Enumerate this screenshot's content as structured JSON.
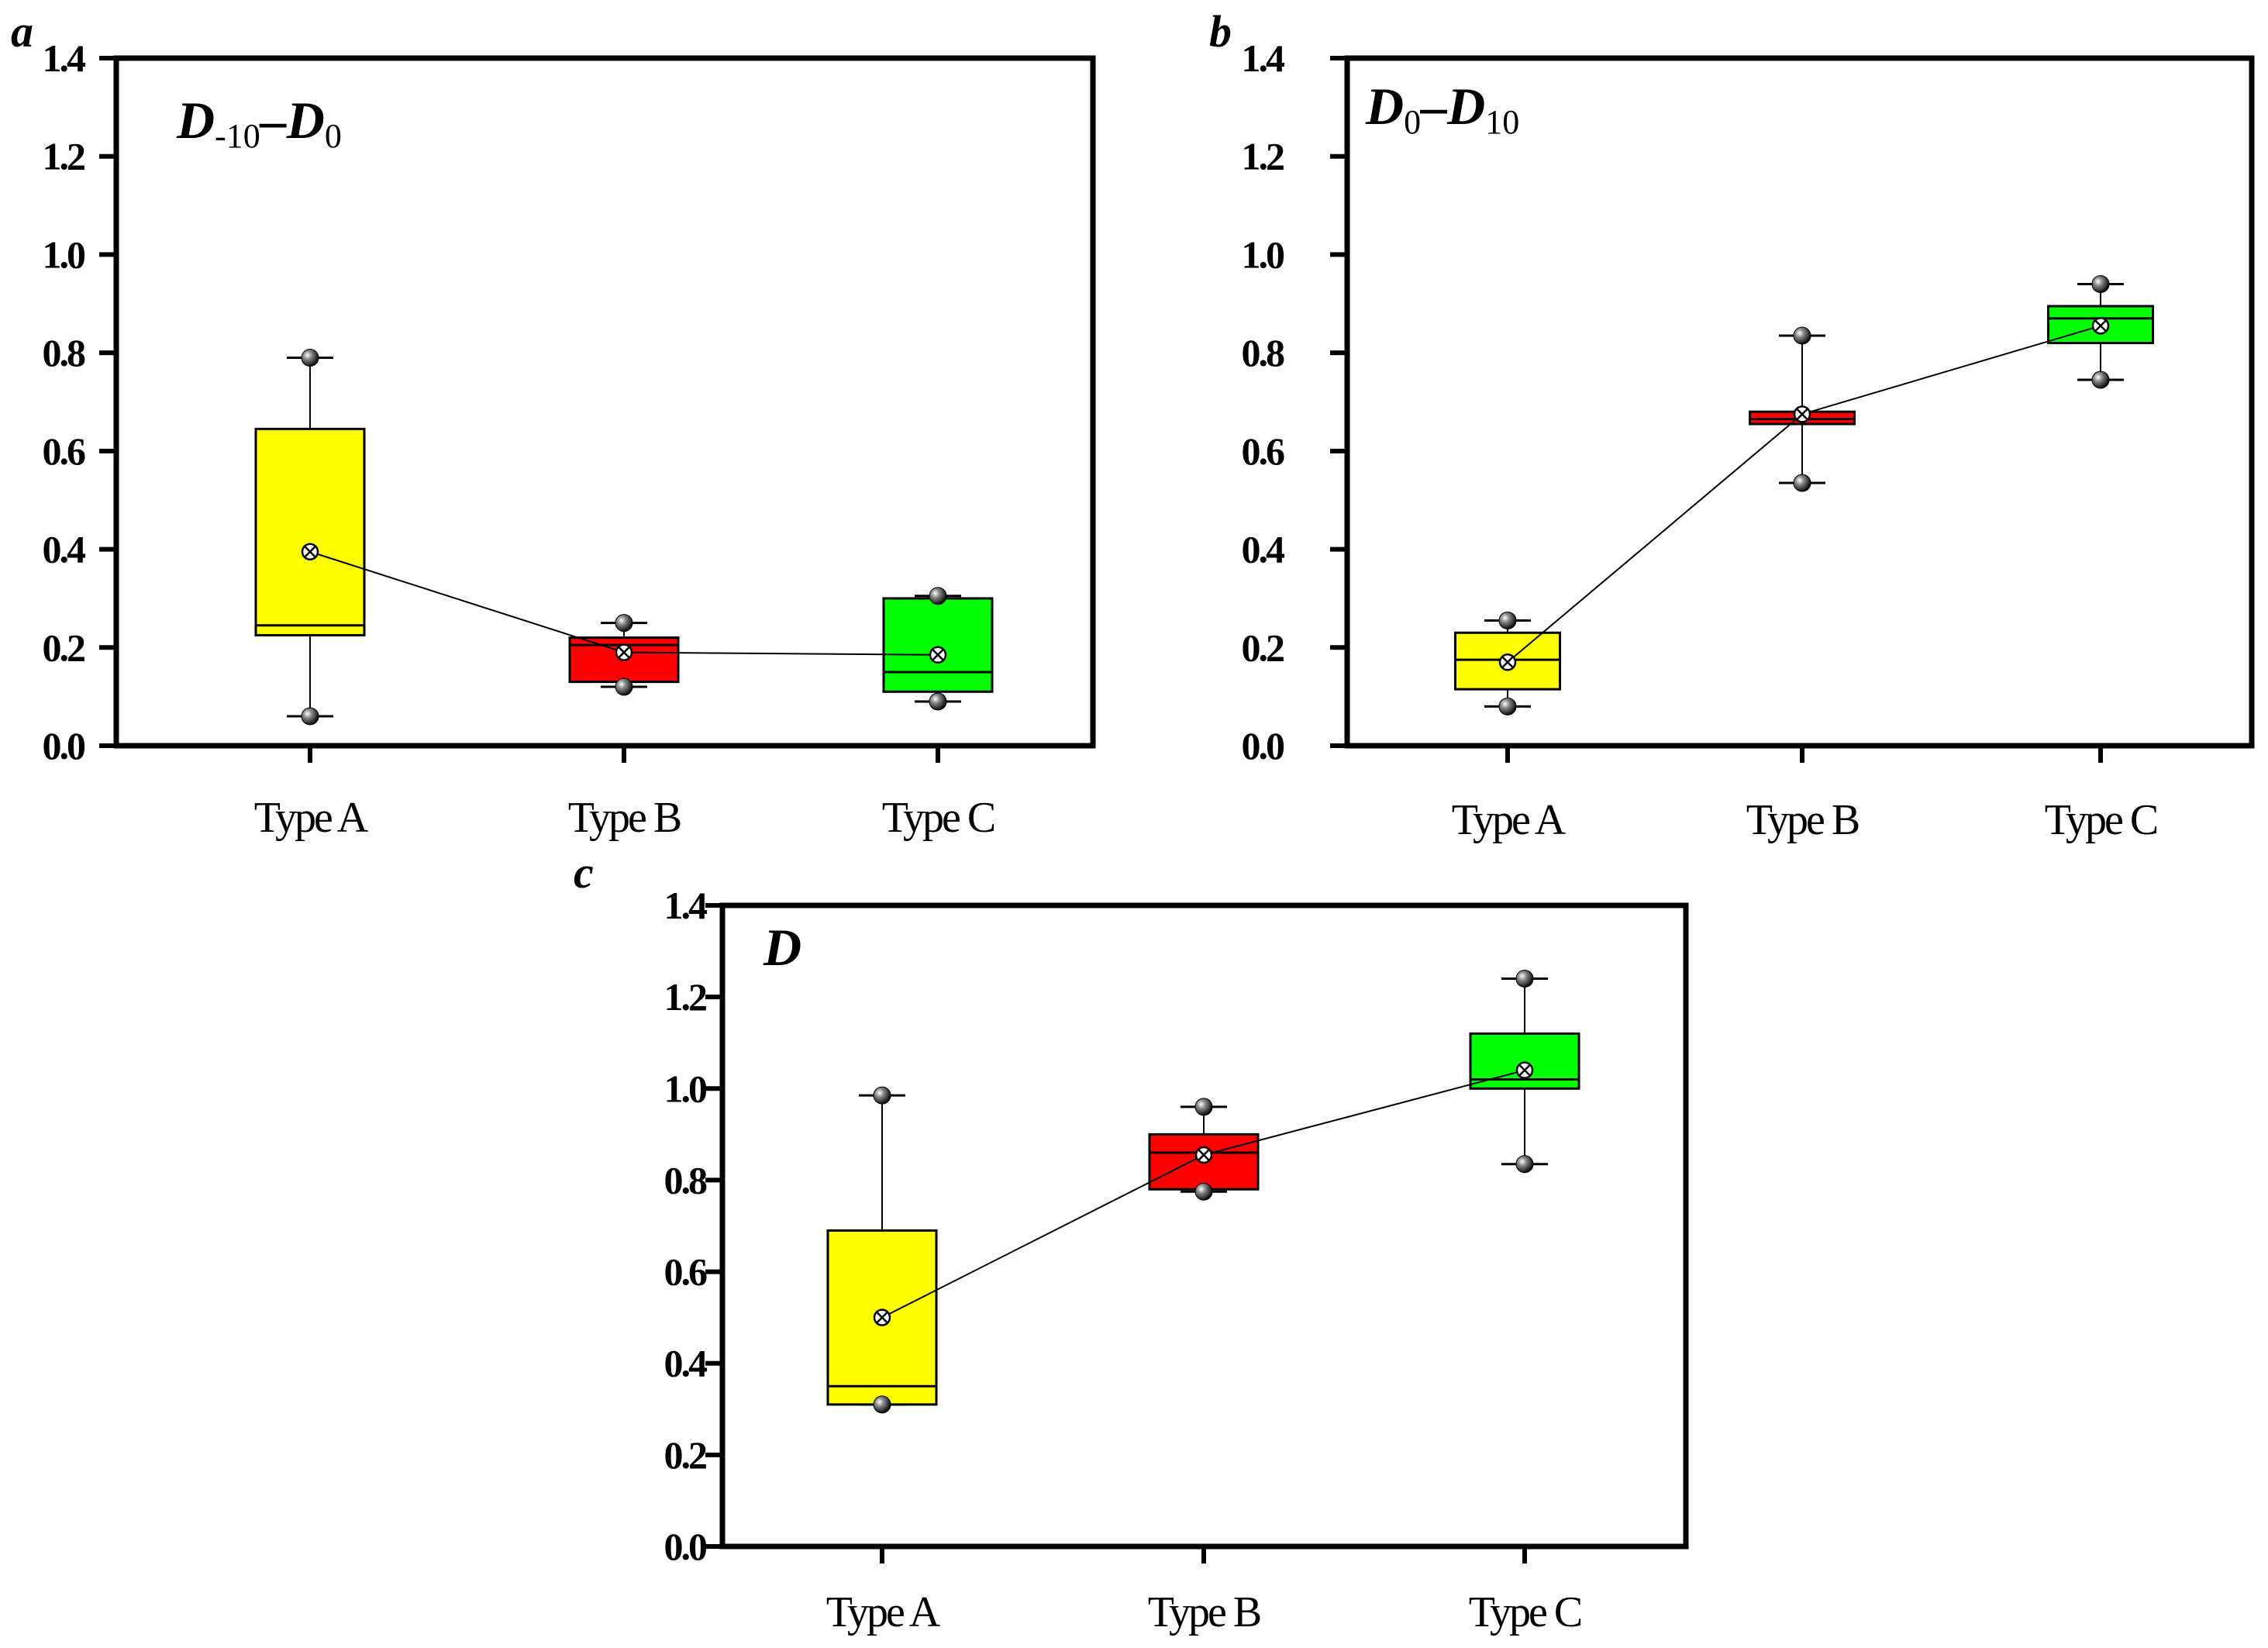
{
  "chart_data": [
    {
      "type": "box",
      "panel_label": "a",
      "title": {
        "main1": "D",
        "sub1": "-10",
        "dash": "–",
        "main2": "D",
        "sub2": "0"
      },
      "categories": [
        "Type A",
        "Type B",
        "Type C"
      ],
      "ylim": [
        0.0,
        1.4
      ],
      "yticks": [
        "0.0",
        "0.2",
        "0.4",
        "0.6",
        "0.8",
        "1.0",
        "1.2",
        "1.4"
      ],
      "colors": [
        "#ffff00",
        "#ff0000",
        "#00ff00"
      ],
      "boxes": [
        {
          "q1": 0.225,
          "median": 0.245,
          "q3": 0.645,
          "whisker_low": 0.06,
          "whisker_high": 0.79,
          "mean": 0.395
        },
        {
          "q1": 0.13,
          "median": 0.205,
          "q3": 0.22,
          "whisker_low": 0.12,
          "whisker_high": 0.25,
          "mean": 0.19
        },
        {
          "q1": 0.11,
          "median": 0.15,
          "q3": 0.3,
          "whisker_low": 0.09,
          "whisker_high": 0.305,
          "mean": 0.185
        }
      ]
    },
    {
      "type": "box",
      "panel_label": "b",
      "title": {
        "main1": "D",
        "sub1": "0",
        "dash": "–",
        "main2": "D",
        "sub2": "10"
      },
      "categories": [
        "Type A",
        "Type B",
        "Type C"
      ],
      "ylim": [
        0.0,
        1.4
      ],
      "yticks": [
        "0.0",
        "0.2",
        "0.4",
        "0.6",
        "0.8",
        "1.0",
        "1.2",
        "1.4"
      ],
      "colors": [
        "#ffff00",
        "#ff0000",
        "#00ff00"
      ],
      "boxes": [
        {
          "q1": 0.115,
          "median": 0.175,
          "q3": 0.23,
          "whisker_low": 0.08,
          "whisker_high": 0.255,
          "mean": 0.17
        },
        {
          "q1": 0.655,
          "median": 0.665,
          "q3": 0.68,
          "whisker_low": 0.535,
          "whisker_high": 0.835,
          "mean": 0.675
        },
        {
          "q1": 0.82,
          "median": 0.87,
          "q3": 0.895,
          "whisker_low": 0.745,
          "whisker_high": 0.94,
          "mean": 0.855
        }
      ]
    },
    {
      "type": "box",
      "panel_label": "c",
      "title": {
        "main1": "D"
      },
      "categories": [
        "Type A",
        "Type B",
        "Type C"
      ],
      "ylim": [
        0.0,
        1.4
      ],
      "yticks": [
        "0.0",
        "0.2",
        "0.4",
        "0.6",
        "0.8",
        "1.0",
        "1.2",
        "1.4"
      ],
      "colors": [
        "#ffff00",
        "#ff0000",
        "#00ff00"
      ],
      "boxes": [
        {
          "q1": 0.31,
          "median": 0.35,
          "q3": 0.69,
          "whisker_low": 0.31,
          "whisker_high": 0.985,
          "mean": 0.5
        },
        {
          "q1": 0.78,
          "median": 0.86,
          "q3": 0.9,
          "whisker_low": 0.775,
          "whisker_high": 0.96,
          "mean": 0.855
        },
        {
          "q1": 1.0,
          "median": 1.02,
          "q3": 1.12,
          "whisker_low": 0.835,
          "whisker_high": 1.24,
          "mean": 1.04
        }
      ]
    }
  ]
}
